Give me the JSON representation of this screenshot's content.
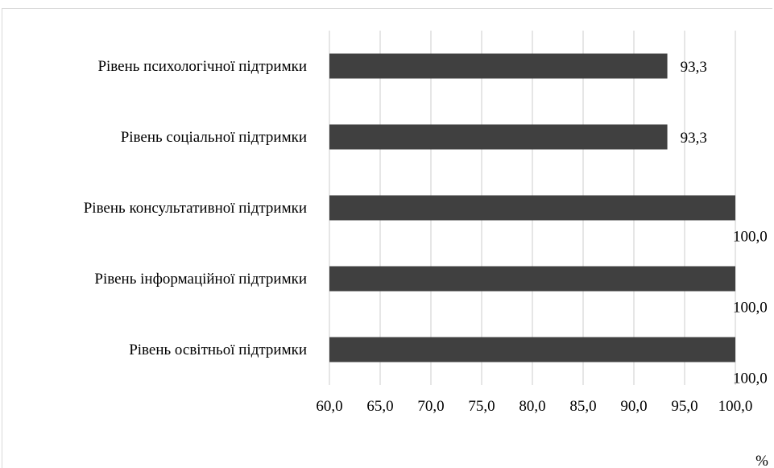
{
  "chart_data": {
    "type": "bar",
    "orientation": "horizontal",
    "categories": [
      "Рівень психологічної підтримки",
      "Рівень соціальної підтримки",
      "Рівень консультативної підтримки",
      "Рівень інформаційної підтримки",
      "Рівень освітньої підтримки"
    ],
    "values": [
      93.3,
      93.3,
      100.0,
      100.0,
      100.0
    ],
    "data_labels": [
      "93,3",
      "93,3",
      "100,0",
      "100,0",
      "100,0"
    ],
    "xlim": [
      60,
      100
    ],
    "x_ticks": [
      60,
      65,
      70,
      75,
      80,
      85,
      90,
      95,
      100
    ],
    "x_tick_labels": [
      "60,0",
      "65,0",
      "70,0",
      "75,0",
      "80,0",
      "85,0",
      "90,0",
      "95,0",
      "100,0"
    ],
    "xlabel": "%",
    "grid": true,
    "bar_color": "#404040",
    "grid_color": "#d9d9d9"
  }
}
